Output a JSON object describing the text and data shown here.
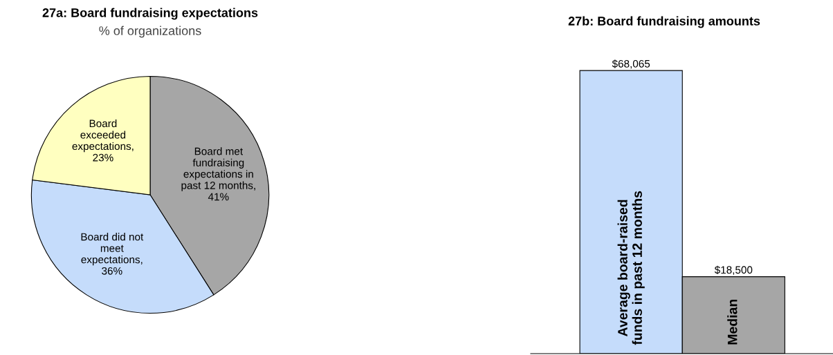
{
  "chart_data": [
    {
      "type": "pie",
      "title": "27a: Board fundraising expectations",
      "subtitle": "% of organizations",
      "categories": [
        "Board met\nfundraising\nexpectations in\npast 12 months",
        "Board did not\nmeet\nexpectations",
        "Board\nexceeded\nexpectations"
      ],
      "values": [
        41,
        36,
        23
      ],
      "value_labels": [
        ",\n41%",
        ",\n36%",
        ",\n23%"
      ],
      "colors": [
        "#a6a6a6",
        "#c5dcfb",
        "#ffffc0"
      ]
    },
    {
      "type": "bar",
      "title": "27b: Board fundraising amounts",
      "categories": [
        "Average board-raised\nfunds in past 12 months",
        "Median"
      ],
      "values": [
        68065,
        18500
      ],
      "value_labels": [
        "$68,065",
        "$18,500"
      ],
      "colors": [
        "#c5dcfb",
        "#a6a6a6"
      ]
    }
  ]
}
